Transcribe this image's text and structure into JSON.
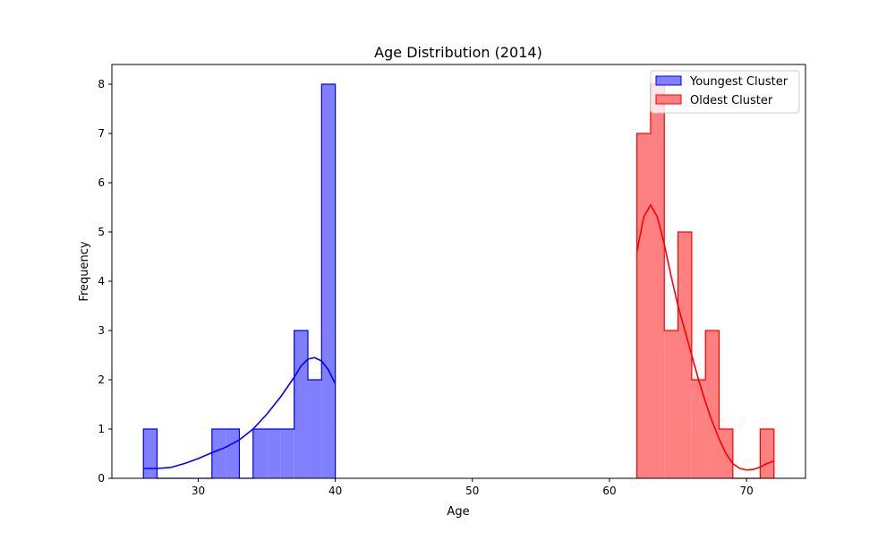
{
  "chart_data": {
    "type": "histogram",
    "title": "Age Distribution (2014)",
    "xlabel": "Age",
    "ylabel": "Frequency",
    "xlim": [
      23.7,
      74.3
    ],
    "ylim": [
      0,
      8.4
    ],
    "xticks": [
      30,
      40,
      50,
      60,
      70
    ],
    "yticks": [
      0,
      1,
      2,
      3,
      4,
      5,
      6,
      7,
      8
    ],
    "grid": false,
    "legend_position": "top-right",
    "series": [
      {
        "name": "Youngest Cluster",
        "color": "#0000ff",
        "fill": "#8080ff",
        "bin_edges": [
          26,
          27,
          28,
          29,
          30,
          31,
          32,
          33,
          34,
          35,
          36,
          37,
          38,
          39,
          40
        ],
        "counts": [
          1,
          0,
          0,
          0,
          0,
          1,
          1,
          0,
          1,
          1,
          1,
          3,
          2,
          8
        ],
        "kde": {
          "x": [
            26,
            27,
            28,
            29,
            30,
            31,
            32,
            33,
            34,
            35,
            36,
            37,
            37.5,
            38,
            38.5,
            39,
            39.5,
            40
          ],
          "y": [
            0.2,
            0.2,
            0.22,
            0.3,
            0.4,
            0.52,
            0.63,
            0.78,
            1.0,
            1.3,
            1.65,
            2.05,
            2.28,
            2.42,
            2.45,
            2.38,
            2.2,
            1.92
          ]
        }
      },
      {
        "name": "Oldest Cluster",
        "color": "#ff0000",
        "fill": "#ff8080",
        "bin_edges": [
          62,
          63,
          64,
          65,
          66,
          67,
          68,
          69,
          70,
          71,
          72
        ],
        "counts": [
          7,
          8,
          3,
          5,
          2,
          3,
          1,
          0,
          0,
          1
        ],
        "kde": {
          "x": [
            62,
            62.5,
            63,
            63.5,
            64,
            64.5,
            65,
            65.5,
            66,
            66.5,
            67,
            67.5,
            68,
            68.5,
            69,
            69.5,
            70,
            70.5,
            71,
            71.5,
            72
          ],
          "y": [
            4.6,
            5.3,
            5.55,
            5.3,
            4.75,
            4.1,
            3.5,
            3.0,
            2.5,
            2.0,
            1.55,
            1.15,
            0.8,
            0.5,
            0.3,
            0.2,
            0.17,
            0.18,
            0.23,
            0.3,
            0.35
          ]
        }
      }
    ]
  }
}
